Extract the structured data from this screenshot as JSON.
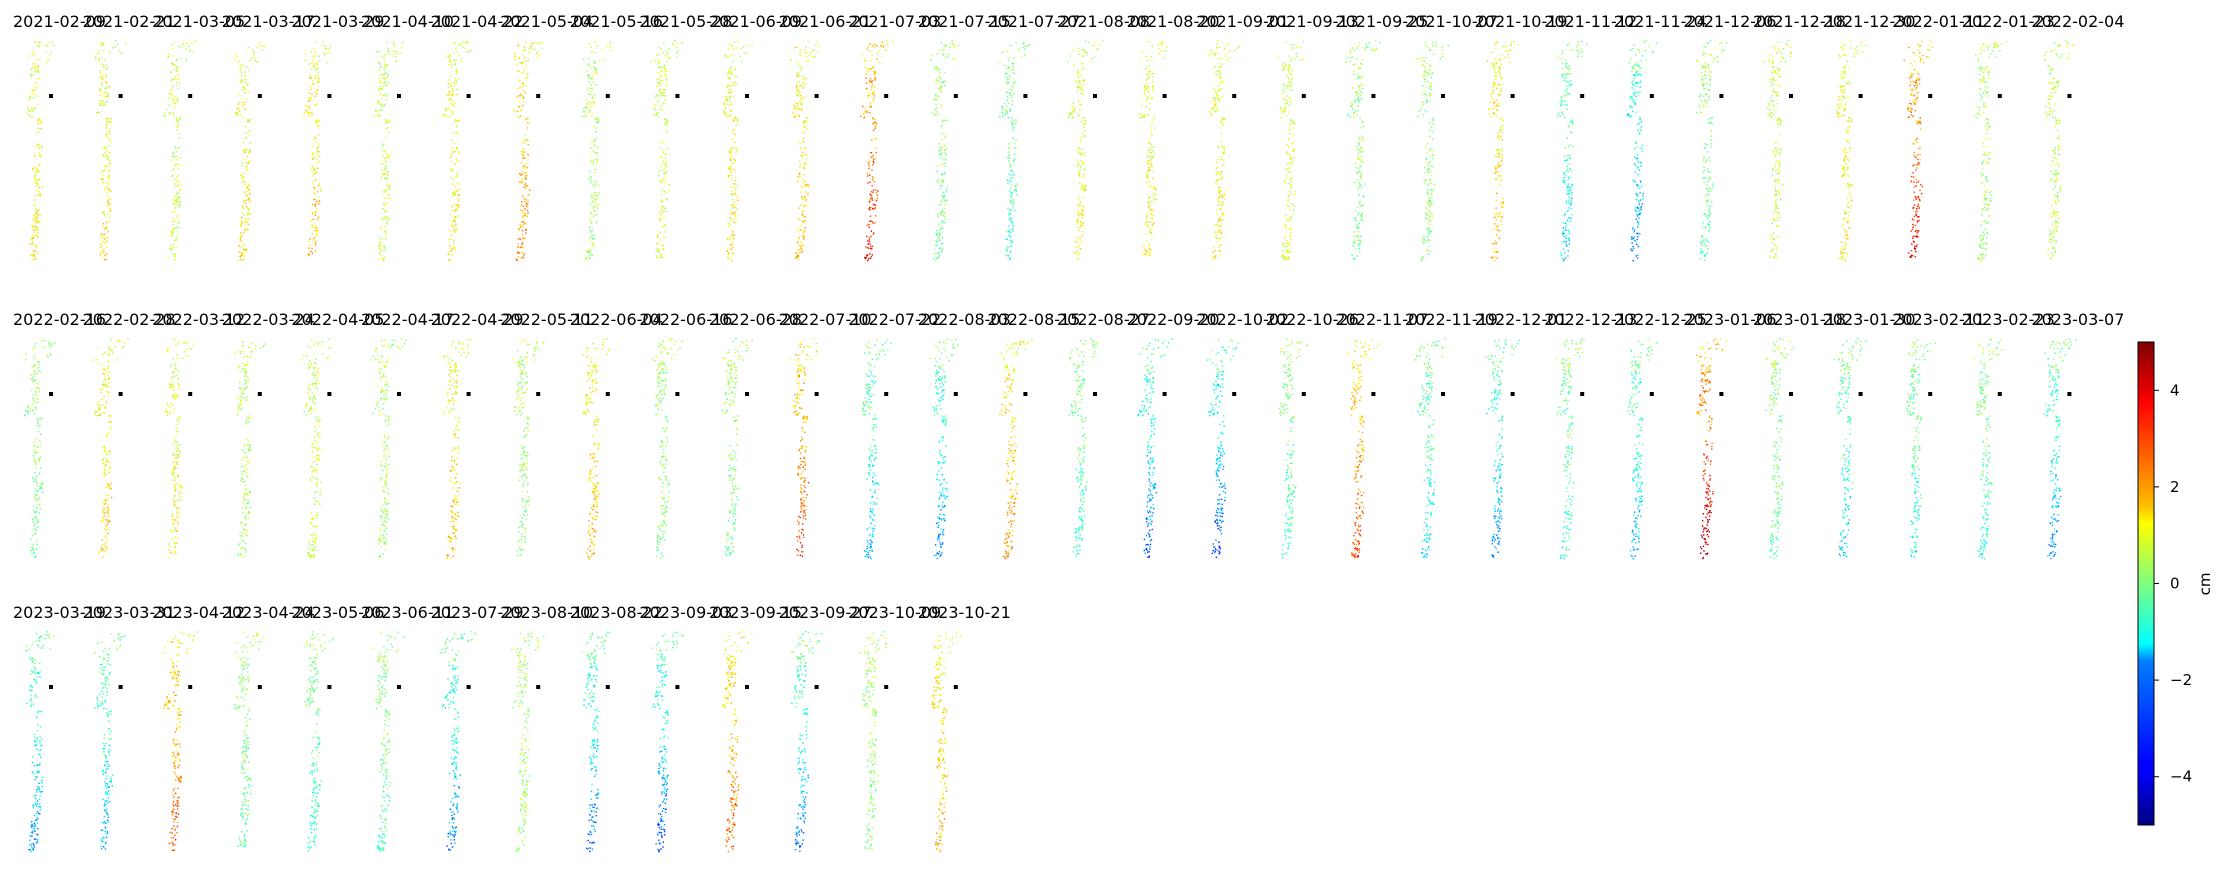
{
  "chart_data": {
    "type": "scatter",
    "layout": {
      "rows": 3,
      "cols": 30,
      "count": 74
    },
    "panel_titles": [
      "2021-02-09",
      "2021-02-21",
      "2021-03-05",
      "2021-03-17",
      "2021-03-29",
      "2021-04-10",
      "2021-04-22",
      "2021-05-04",
      "2021-05-16",
      "2021-05-28",
      "2021-06-09",
      "2021-06-21",
      "2021-07-03",
      "2021-07-15",
      "2021-07-27",
      "2021-08-08",
      "2021-08-20",
      "2021-09-01",
      "2021-09-13",
      "2021-09-25",
      "2021-10-07",
      "2021-10-19",
      "2021-11-12",
      "2021-11-24",
      "2021-12-06",
      "2021-12-18",
      "2021-12-30",
      "2022-01-11",
      "2022-01-23",
      "2022-02-04",
      "2022-02-16",
      "2022-02-28",
      "2022-03-12",
      "2022-03-24",
      "2022-04-05",
      "2022-04-17",
      "2022-04-29",
      "2022-05-11",
      "2022-06-04",
      "2022-06-16",
      "2022-06-28",
      "2022-07-10",
      "2022-07-22",
      "2022-08-03",
      "2022-08-15",
      "2022-08-27",
      "2022-09-20",
      "2022-10-02",
      "2022-10-26",
      "2022-11-07",
      "2022-11-19",
      "2022-12-01",
      "2022-12-13",
      "2022-12-25",
      "2023-01-06",
      "2023-01-18",
      "2023-01-30",
      "2023-02-11",
      "2023-02-23",
      "2023-03-07",
      "2023-03-19",
      "2023-03-31",
      "2023-04-12",
      "2023-04-24",
      "2023-05-06",
      "2023-06-11",
      "2023-07-29",
      "2023-08-10",
      "2023-08-22",
      "2023-09-03",
      "2023-09-15",
      "2023-09-27",
      "2023-10-09",
      "2023-10-21"
    ],
    "panel_trend": [
      0.8,
      1.0,
      0.2,
      0.9,
      1.3,
      0.3,
      0.8,
      2.0,
      -0.2,
      0.4,
      1.0,
      1.3,
      3.2,
      -0.8,
      -1.5,
      0.6,
      0.8,
      0.9,
      0.4,
      -0.8,
      -0.6,
      1.5,
      -2.2,
      -3.2,
      -1.0,
      0.3,
      0.8,
      3.5,
      -0.4,
      0.1,
      -0.8,
      1.2,
      0.8,
      -0.2,
      0.2,
      -0.3,
      1.3,
      -0.5,
      1.5,
      -0.6,
      -0.8,
      2.8,
      -2.6,
      -3.0,
      1.8,
      -1.5,
      -3.5,
      -3.8,
      -1.3,
      2.6,
      -2.2,
      -3.1,
      -1.6,
      -2.6,
      4.2,
      -1.0,
      -2.3,
      -1.8,
      -1.6,
      -3.0,
      -3.0,
      -2.6,
      2.5,
      -1.0,
      -1.6,
      -1.2,
      -3.2,
      -0.4,
      -3.4,
      -3.6,
      2.3,
      -3.1,
      -0.6,
      1.5
    ],
    "series": [
      {
        "values": []
      }
    ],
    "reference_point": {
      "marker": "black-square"
    },
    "xlabel": "",
    "ylabel": "",
    "grid": false,
    "colorbar": {
      "colormap": "jet",
      "label": "cm",
      "vmin": -5,
      "vmax": 5,
      "ticks": [
        4,
        2,
        0,
        -2,
        -4
      ],
      "tick_labels": [
        "4",
        "2",
        "0",
        "−2",
        "−4"
      ],
      "placement": "right"
    }
  }
}
